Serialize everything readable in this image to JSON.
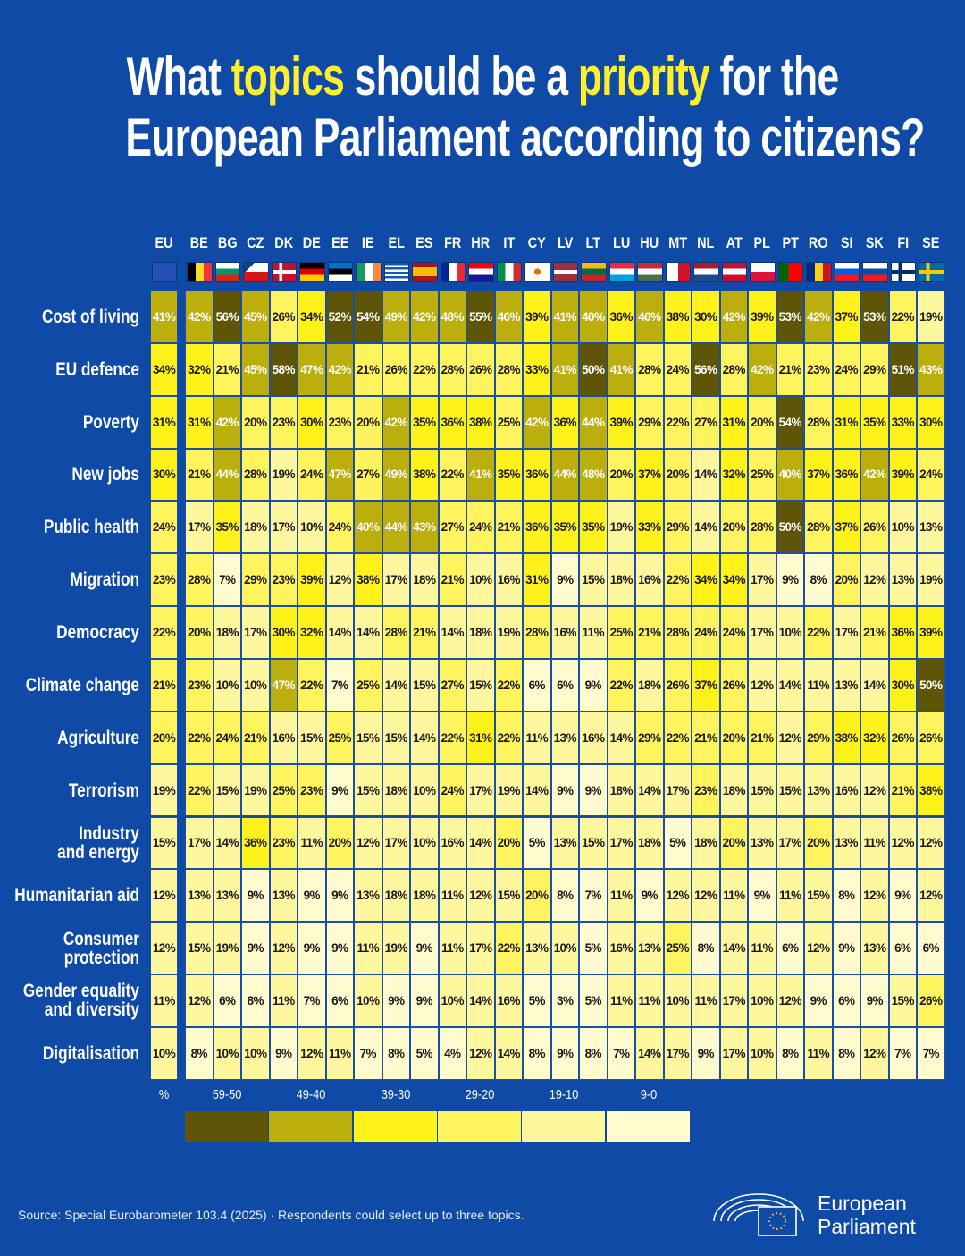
{
  "chart_data": {
    "type": "heatmap",
    "title_lines": [
      [
        {
          "text": "What "
        },
        {
          "text": "topics",
          "highlight": true
        },
        {
          "text": " should be a "
        },
        {
          "text": "priority",
          "highlight": true
        },
        {
          "text": " for the"
        }
      ],
      [
        {
          "text": "European Parliament according to citizens?"
        }
      ]
    ],
    "rows": [
      "Cost of living",
      "EU defence",
      "Poverty",
      "New jobs",
      "Public health",
      "Migration",
      "Democracy",
      "Climate change",
      "Agriculture",
      "Terrorism",
      "Industry\nand energy",
      "Humanitarian aid",
      "Consumer\nprotection",
      "Gender equality\nand diversity",
      "Digitalisation"
    ],
    "columns": [
      "EU",
      "BE",
      "BG",
      "CZ",
      "DK",
      "DE",
      "EE",
      "IE",
      "EL",
      "ES",
      "FR",
      "HR",
      "IT",
      "CY",
      "LV",
      "LT",
      "LU",
      "HU",
      "MT",
      "NL",
      "AT",
      "PL",
      "PT",
      "RO",
      "SI",
      "SK",
      "FI",
      "SE"
    ],
    "values": [
      [
        41,
        42,
        56,
        45,
        26,
        34,
        52,
        54,
        49,
        42,
        48,
        55,
        46,
        39,
        41,
        40,
        36,
        46,
        38,
        30,
        42,
        39,
        53,
        42,
        37,
        53,
        22,
        19
      ],
      [
        34,
        32,
        21,
        45,
        58,
        47,
        42,
        21,
        26,
        22,
        28,
        26,
        28,
        33,
        41,
        50,
        41,
        28,
        24,
        56,
        28,
        42,
        21,
        23,
        24,
        29,
        51,
        43
      ],
      [
        31,
        31,
        42,
        20,
        23,
        30,
        23,
        20,
        42,
        35,
        36,
        38,
        25,
        42,
        36,
        44,
        39,
        29,
        22,
        27,
        31,
        20,
        54,
        28,
        31,
        35,
        33,
        30
      ],
      [
        30,
        21,
        44,
        28,
        19,
        24,
        47,
        27,
        49,
        38,
        22,
        41,
        35,
        36,
        44,
        48,
        20,
        37,
        20,
        14,
        32,
        25,
        40,
        37,
        36,
        42,
        39,
        24
      ],
      [
        24,
        17,
        35,
        18,
        17,
        10,
        24,
        40,
        44,
        43,
        27,
        24,
        21,
        36,
        35,
        35,
        19,
        33,
        29,
        14,
        20,
        28,
        50,
        28,
        37,
        26,
        10,
        13
      ],
      [
        23,
        28,
        7,
        29,
        23,
        39,
        12,
        38,
        17,
        18,
        21,
        10,
        16,
        31,
        9,
        15,
        18,
        16,
        22,
        34,
        34,
        17,
        9,
        8,
        20,
        12,
        13,
        19
      ],
      [
        22,
        20,
        18,
        17,
        30,
        32,
        14,
        14,
        28,
        21,
        14,
        18,
        19,
        28,
        16,
        11,
        25,
        21,
        28,
        24,
        24,
        17,
        10,
        22,
        17,
        21,
        36,
        39
      ],
      [
        21,
        23,
        10,
        10,
        47,
        22,
        7,
        25,
        14,
        15,
        27,
        15,
        22,
        6,
        6,
        9,
        22,
        18,
        26,
        37,
        26,
        12,
        14,
        11,
        13,
        14,
        30,
        50
      ],
      [
        20,
        22,
        24,
        21,
        16,
        15,
        25,
        15,
        15,
        14,
        22,
        31,
        22,
        11,
        13,
        16,
        14,
        29,
        22,
        21,
        20,
        21,
        12,
        29,
        38,
        32,
        26,
        26
      ],
      [
        19,
        22,
        15,
        19,
        25,
        23,
        9,
        15,
        18,
        10,
        24,
        17,
        19,
        14,
        9,
        9,
        18,
        14,
        17,
        23,
        18,
        15,
        15,
        13,
        16,
        12,
        21,
        38
      ],
      [
        15,
        17,
        14,
        36,
        23,
        11,
        20,
        12,
        17,
        10,
        16,
        14,
        20,
        5,
        13,
        15,
        17,
        18,
        5,
        18,
        20,
        13,
        17,
        20,
        13,
        11,
        12,
        12
      ],
      [
        12,
        13,
        13,
        9,
        13,
        9,
        9,
        13,
        18,
        18,
        11,
        12,
        15,
        20,
        8,
        7,
        11,
        9,
        12,
        12,
        11,
        9,
        11,
        15,
        8,
        12,
        9,
        12
      ],
      [
        12,
        15,
        19,
        9,
        12,
        9,
        9,
        11,
        19,
        9,
        11,
        17,
        22,
        13,
        10,
        5,
        16,
        13,
        25,
        8,
        14,
        11,
        6,
        12,
        9,
        13,
        6,
        6
      ],
      [
        11,
        12,
        6,
        8,
        11,
        7,
        6,
        10,
        9,
        9,
        10,
        14,
        16,
        5,
        3,
        5,
        11,
        11,
        10,
        11,
        17,
        10,
        12,
        9,
        6,
        9,
        15,
        26
      ],
      [
        10,
        8,
        10,
        10,
        9,
        12,
        11,
        7,
        8,
        5,
        4,
        12,
        14,
        8,
        9,
        8,
        7,
        14,
        17,
        9,
        17,
        10,
        8,
        11,
        8,
        12,
        7,
        7
      ]
    ],
    "value_labels": [
      [
        "41%",
        "42%",
        "56%",
        "45%",
        "26%",
        "34%",
        "52%",
        "54%",
        "49%",
        "42%",
        "48%",
        "55%",
        "46%",
        "39%",
        "41%",
        "40%",
        "36%",
        "46%",
        "38%",
        "30%",
        "42%",
        "39%",
        "53%",
        "42%",
        "37%",
        "53%",
        "22%",
        "19%"
      ],
      [
        "34%",
        "32%",
        "21%",
        "45%",
        "58%",
        "47%",
        "42%",
        "21%",
        "26%",
        "22%",
        "28%",
        "26%",
        "28%",
        "33%",
        "41%",
        "50%",
        "41%",
        "28%",
        "24%",
        "56%",
        "28%",
        "42%",
        "21%",
        "23%",
        "24%",
        "29%",
        "51%",
        "43%"
      ],
      [
        "31%",
        "31%",
        "42%",
        "20%",
        "23%",
        "30%",
        "23%",
        "20%",
        "42%",
        "35%",
        "36%",
        "38%",
        "25%",
        "42%",
        "36%",
        "44%",
        "39%",
        "29%",
        "22%",
        "27%",
        "31%",
        "20%",
        "54%",
        "28%",
        "31%",
        "35%",
        "33%",
        "30%"
      ],
      [
        "30%",
        "21%",
        "44%",
        "28%",
        "19%",
        "24%",
        "47%",
        "27%",
        "49%",
        "38%",
        "22%",
        "41%",
        "35%",
        "36%",
        "44%",
        "48%",
        "20%",
        "37%",
        "20%",
        "14%",
        "32%",
        "25%",
        "40%",
        "37%",
        "36%",
        "42%",
        "39%",
        "24%"
      ],
      [
        "24%",
        "17%",
        "35%",
        "18%",
        "17%",
        "10%",
        "24%",
        "40%",
        "44%",
        "43%",
        "27%",
        "24%",
        "21%",
        "36%",
        "35%",
        "35%",
        "19%",
        "33%",
        "29%",
        "14%",
        "20%",
        "28%",
        "50%",
        "28%",
        "37%",
        "26%",
        "10%",
        "13%"
      ],
      [
        "23%",
        "28%",
        "7%",
        "29%",
        "23%",
        "39%",
        "12%",
        "38%",
        "17%",
        "18%",
        "21%",
        "10%",
        "16%",
        "31%",
        "9%",
        "15%",
        "18%",
        "16%",
        "22%",
        "34%",
        "34%",
        "17%",
        "9%",
        "8%",
        "20%",
        "12%",
        "13%",
        "19%"
      ],
      [
        "22%",
        "20%",
        "18%",
        "17%",
        "30%",
        "32%",
        "14%",
        "14%",
        "28%",
        "21%",
        "14%",
        "18%",
        "19%",
        "28%",
        "16%",
        "11%",
        "25%",
        "21%",
        "28%",
        "24%",
        "24%",
        "17%",
        "10%",
        "22%",
        "17%",
        "21%",
        "36%",
        "39%"
      ],
      [
        "21%",
        "23%",
        "10%",
        "10%",
        "47%",
        "22%",
        "7%",
        "25%",
        "14%",
        "15%",
        "27%",
        "15%",
        "22%",
        "6%",
        "6%",
        "9%",
        "22%",
        "18%",
        "26%",
        "37%",
        "26%",
        "12%",
        "14%",
        "11%",
        "13%",
        "14%",
        "30%",
        "50%"
      ],
      [
        "20%",
        "22%",
        "24%",
        "21%",
        "16%",
        "15%",
        "25%",
        "15%",
        "15%",
        "14%",
        "22%",
        "31%",
        "22%",
        "11%",
        "13%",
        "16%",
        "14%",
        "29%",
        "22%",
        "21%",
        "20%",
        "21%",
        "12%",
        "29%",
        "38%",
        "32%",
        "26%",
        "26%"
      ],
      [
        "19%",
        "22%",
        "15%",
        "19%",
        "25%",
        "23%",
        "9%",
        "15%",
        "18%",
        "10%",
        "24%",
        "17%",
        "19%",
        "14%",
        "9%",
        "9%",
        "18%",
        "14%",
        "17%",
        "23%",
        "18%",
        "15%",
        "15%",
        "13%",
        "16%",
        "12%",
        "21%",
        "38%"
      ],
      [
        "15%",
        "17%",
        "14%",
        "36%",
        "23%",
        "11%",
        "20%",
        "12%",
        "17%",
        "10%",
        "16%",
        "14%",
        "20%",
        "5%",
        "13%",
        "15%",
        "17%",
        "18%",
        "5%",
        "18%",
        "20%",
        "13%",
        "17%",
        "20%",
        "13%",
        "11%",
        "12%",
        "12%"
      ],
      [
        "12%",
        "13%",
        "13%",
        "9%",
        "13%",
        "9%",
        "9%",
        "13%",
        "18%",
        "18%",
        "11%",
        "12%",
        "15%",
        "20%",
        "8%",
        "7%",
        "11%",
        "9%",
        "12%",
        "12%",
        "11%",
        "9%",
        "11%",
        "15%",
        "8%",
        "12%",
        "9%",
        "12%"
      ],
      [
        "12%",
        "15%",
        "19%",
        "9%",
        "12%",
        "9%",
        "9%",
        "11%",
        "19%",
        "9%",
        "11%",
        "17%",
        "22%",
        "13%",
        "10%",
        "5%",
        "16%",
        "13%",
        "25%",
        "8%",
        "14%",
        "11%",
        "6%",
        "12%",
        "9%",
        "13%",
        "6%",
        "6%"
      ],
      [
        "11%",
        "12%",
        "6%",
        "8%",
        "11%",
        "7%",
        "6%",
        "10%",
        "9%",
        "9%",
        "10%",
        "14%",
        "16%",
        "5%",
        "3%",
        "5%",
        "11%",
        "11%",
        "10%",
        "11%",
        "17%",
        "10%",
        "12%",
        "9%",
        "6%",
        "9%",
        "15%",
        "26%"
      ],
      [
        "10%",
        "8%",
        "10%",
        "10%",
        "9%",
        "12%",
        "11%",
        "7%",
        "8%",
        "5%",
        "4%",
        "12%",
        "14%",
        "8%",
        "9%",
        "8%",
        "7%",
        "14%",
        "17%",
        "9%",
        "17%",
        "10%",
        "8%",
        "11%",
        "8%",
        "12%",
        "7%",
        "7%"
      ]
    ],
    "legend": {
      "unit": "%",
      "bins": [
        {
          "label": "59-50",
          "min": 50,
          "max": 59,
          "color": "#5e5508"
        },
        {
          "label": "49-40",
          "min": 40,
          "max": 49,
          "color": "#bcae0c"
        },
        {
          "label": "39-30",
          "min": 30,
          "max": 39,
          "color": "#fff21a"
        },
        {
          "label": "29-20",
          "min": 20,
          "max": 29,
          "color": "#fff45e"
        },
        {
          "label": "19-10",
          "min": 10,
          "max": 19,
          "color": "#fff79d"
        },
        {
          "label": "9-0",
          "min": 0,
          "max": 9,
          "color": "#fffbcf"
        }
      ]
    },
    "source": "Source: Special Eurobarometer 103.4 (2025) · Respondents could select up to three topics.",
    "logo_lines": [
      "European",
      "Parliament"
    ]
  }
}
